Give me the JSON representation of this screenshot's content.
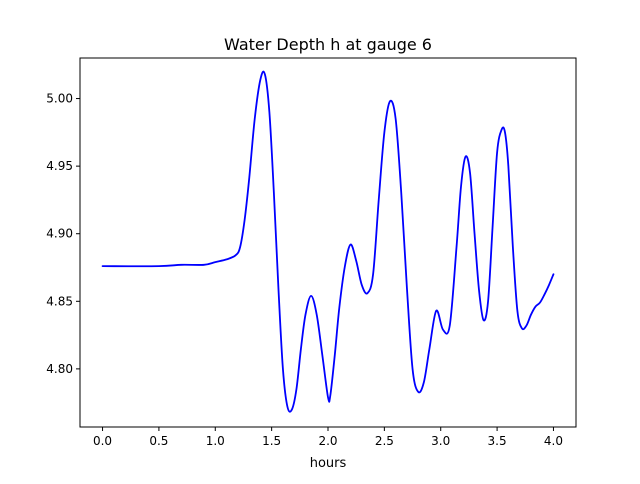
{
  "chart_data": {
    "type": "line",
    "title": "Water Depth h at gauge 6",
    "xlabel": "hours",
    "ylabel": "",
    "xlim": [
      -0.2,
      4.2
    ],
    "ylim": [
      4.757,
      5.03
    ],
    "xticks": [
      0.0,
      0.5,
      1.0,
      1.5,
      2.0,
      2.5,
      3.0,
      3.5,
      4.0
    ],
    "xtick_labels": [
      "0.0",
      "0.5",
      "1.0",
      "1.5",
      "2.0",
      "2.5",
      "3.0",
      "3.5",
      "4.0"
    ],
    "yticks": [
      4.8,
      4.85,
      4.9,
      4.95,
      5.0
    ],
    "ytick_labels": [
      "4.80",
      "4.85",
      "4.90",
      "4.95",
      "5.00"
    ],
    "grid": false,
    "series": [
      {
        "color": "#0000ff",
        "x": [
          0.0,
          0.5,
          0.7,
          0.9,
          1.0,
          1.1,
          1.18,
          1.22,
          1.26,
          1.3,
          1.35,
          1.4,
          1.44,
          1.48,
          1.52,
          1.56,
          1.6,
          1.64,
          1.68,
          1.72,
          1.76,
          1.8,
          1.85,
          1.9,
          1.95,
          2.0,
          2.02,
          2.06,
          2.1,
          2.15,
          2.2,
          2.25,
          2.3,
          2.35,
          2.4,
          2.45,
          2.5,
          2.55,
          2.6,
          2.65,
          2.7,
          2.75,
          2.8,
          2.85,
          2.9,
          2.96,
          3.02,
          3.08,
          3.14,
          3.18,
          3.22,
          3.26,
          3.3,
          3.34,
          3.38,
          3.42,
          3.46,
          3.5,
          3.54,
          3.57,
          3.6,
          3.64,
          3.68,
          3.72,
          3.76,
          3.8,
          3.84,
          3.88,
          3.92,
          3.96,
          4.0
        ],
        "y": [
          4.876,
          4.876,
          4.877,
          4.877,
          4.879,
          4.881,
          4.884,
          4.89,
          4.91,
          4.94,
          4.985,
          5.014,
          5.018,
          4.99,
          4.93,
          4.86,
          4.8,
          4.772,
          4.77,
          4.785,
          4.815,
          4.84,
          4.854,
          4.84,
          4.81,
          4.779,
          4.78,
          4.81,
          4.845,
          4.876,
          4.892,
          4.88,
          4.862,
          4.856,
          4.87,
          4.925,
          4.975,
          4.998,
          4.985,
          4.93,
          4.86,
          4.8,
          4.783,
          4.79,
          4.815,
          4.843,
          4.829,
          4.832,
          4.89,
          4.935,
          4.957,
          4.945,
          4.9,
          4.858,
          4.836,
          4.85,
          4.905,
          4.96,
          4.977,
          4.975,
          4.95,
          4.89,
          4.843,
          4.83,
          4.832,
          4.84,
          4.846,
          4.849,
          4.855,
          4.862,
          4.87
        ]
      }
    ]
  }
}
